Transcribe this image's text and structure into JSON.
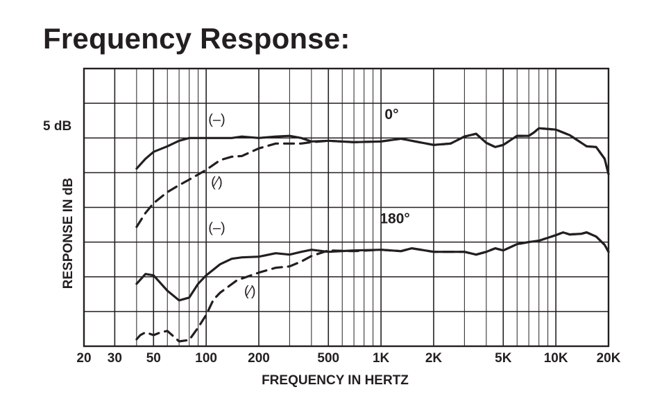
{
  "chart_data": {
    "type": "line",
    "title": "Frequency Response:",
    "xlabel": "FREQUENCY IN HERTZ",
    "ylabel": "RESPONSE IN dB",
    "x_scale": "log",
    "xlim": [
      20,
      20000
    ],
    "x_ticks": [
      {
        "value": 20,
        "label": "20"
      },
      {
        "value": 30,
        "label": "30"
      },
      {
        "value": 50,
        "label": "50"
      },
      {
        "value": 100,
        "label": "100"
      },
      {
        "value": 200,
        "label": "200"
      },
      {
        "value": 500,
        "label": "500"
      },
      {
        "value": 1000,
        "label": "1K"
      },
      {
        "value": 2000,
        "label": "2K"
      },
      {
        "value": 5000,
        "label": "5K"
      },
      {
        "value": 10000,
        "label": "10K"
      },
      {
        "value": 20000,
        "label": "20K"
      }
    ],
    "ylim": [
      -40,
      0
    ],
    "y_scale_label": "5 dB",
    "grid": true,
    "annotations": [
      {
        "text": "0°",
        "x": 1150,
        "y": -7.3
      },
      {
        "text": "180°",
        "x": 1200,
        "y": -22.3
      },
      {
        "text": "(–)",
        "x": 115,
        "y": -8.0
      },
      {
        "text": "(⁄)",
        "x": 115,
        "y": -17.0
      },
      {
        "text": "(–)",
        "x": 115,
        "y": -23.6
      },
      {
        "text": "(⁄)",
        "x": 178,
        "y": -32.7
      }
    ],
    "series": [
      {
        "style": "solid",
        "x": [
          40,
          45,
          50,
          60,
          70,
          80,
          100,
          120,
          140,
          160,
          200,
          250,
          300,
          350,
          400,
          500,
          700,
          1000,
          1300,
          1500,
          2000,
          2500,
          3000,
          3500,
          4000,
          4500,
          5000,
          6000,
          7000,
          7500,
          8000,
          10000,
          12000,
          15000,
          17000,
          19000,
          20000
        ],
        "y": [
          -14.4,
          -13.0,
          -12.0,
          -11.2,
          -10.4,
          -10.0,
          -10.0,
          -10.0,
          -10.0,
          -9.8,
          -10.0,
          -9.8,
          -9.7,
          -10.0,
          -10.5,
          -10.4,
          -10.6,
          -10.5,
          -10.1,
          -10.4,
          -11.0,
          -10.8,
          -9.8,
          -9.4,
          -10.7,
          -11.3,
          -11.0,
          -9.7,
          -9.7,
          -9.2,
          -8.6,
          -8.8,
          -9.6,
          -11.2,
          -11.3,
          -13.0,
          -15.2
        ]
      },
      {
        "style": "dashed",
        "x": [
          40,
          45,
          50,
          60,
          70,
          80,
          100,
          120,
          140,
          160,
          200,
          250,
          300,
          350,
          400,
          500,
          700,
          1000,
          1300,
          1500,
          2000,
          2500,
          3000,
          3500,
          4000,
          4500,
          5000,
          6000,
          7000,
          7500,
          8000,
          10000,
          12000,
          15000,
          17000,
          19000,
          20000
        ],
        "y": [
          -22.8,
          -20.8,
          -19.4,
          -17.8,
          -16.8,
          -16.0,
          -14.6,
          -13.2,
          -12.7,
          -12.6,
          -11.5,
          -10.8,
          -10.8,
          -10.8,
          -10.6,
          -10.4,
          -10.6,
          -10.5,
          -10.1,
          -10.4,
          -11.0,
          -10.8,
          -9.8,
          -9.4,
          -10.7,
          -11.3,
          -11.0,
          -9.7,
          -9.7,
          -9.2,
          -8.6,
          -8.8,
          -9.6,
          -11.2,
          -11.3,
          -13.0,
          -15.2
        ]
      },
      {
        "style": "solid",
        "x": [
          40,
          45,
          50,
          60,
          70,
          80,
          90,
          100,
          120,
          140,
          160,
          200,
          250,
          300,
          350,
          400,
          500,
          700,
          1000,
          1300,
          1500,
          2000,
          2500,
          3000,
          3500,
          4000,
          4500,
          5000,
          6000,
          7000,
          8000,
          10000,
          11000,
          12000,
          14000,
          15000,
          17000,
          19000,
          20000
        ],
        "y": [
          -31.0,
          -29.6,
          -29.8,
          -32.0,
          -33.4,
          -33.0,
          -31.0,
          -29.8,
          -28.2,
          -27.4,
          -27.2,
          -27.1,
          -26.6,
          -26.8,
          -26.4,
          -26.1,
          -26.4,
          -26.2,
          -26.1,
          -26.3,
          -25.9,
          -26.4,
          -26.4,
          -26.4,
          -26.8,
          -26.4,
          -25.9,
          -26.2,
          -25.3,
          -25.0,
          -24.8,
          -24.0,
          -23.6,
          -23.9,
          -23.8,
          -23.6,
          -24.2,
          -25.4,
          -26.4
        ]
      },
      {
        "style": "dashed",
        "x": [
          40,
          42,
          45,
          50,
          55,
          60,
          70,
          80,
          90,
          100,
          110,
          120,
          150,
          200,
          250,
          300,
          350,
          400,
          500,
          700,
          1000,
          1300,
          1500,
          2000,
          2500,
          3000,
          3500,
          4000,
          4500,
          5000,
          6000,
          7000,
          8000,
          10000,
          11000,
          12000,
          14000,
          15000,
          17000,
          19000,
          20000
        ],
        "y": [
          -39.0,
          -38.4,
          -38.0,
          -38.4,
          -38.0,
          -37.8,
          -39.3,
          -39.1,
          -37.3,
          -35.5,
          -33.3,
          -32.3,
          -30.5,
          -29.4,
          -28.7,
          -28.5,
          -27.8,
          -27.0,
          -26.2,
          -26.3,
          -26.1,
          -26.3,
          -25.9,
          -26.4,
          -26.4,
          -26.4,
          -26.8,
          -26.4,
          -25.9,
          -26.2,
          -25.3,
          -25.0,
          -24.8,
          -24.0,
          -23.6,
          -23.9,
          -23.8,
          -23.6,
          -24.2,
          -25.4,
          -26.4
        ]
      }
    ]
  }
}
